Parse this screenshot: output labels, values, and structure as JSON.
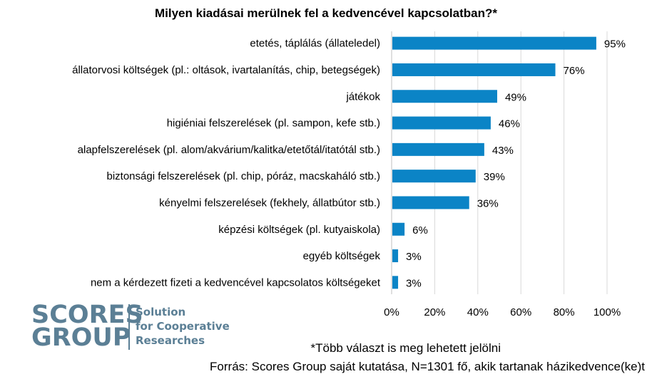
{
  "chart_data": {
    "type": "bar",
    "orientation": "horizontal",
    "title": "Milyen kiadásai merülnek fel a kedvencével kapcsolatban?*",
    "categories": [
      "etetés, táplálás (állateledel)",
      "állatorvosi költségek (pl.: oltások, ivartalanítás, chip, betegségek)",
      "játékok",
      "higiéniai felszerelések (pl. sampon, kefe stb.)",
      "alapfelszerelések (pl. alom/akvárium/kalitka/etetőtál/itatótál stb.)",
      "biztonsági felszerelések (pl. chip, póráz, macskaháló stb.)",
      "kényelmi felszerelések (fekhely, állatbútor stb.)",
      "képzési költségek (pl. kutyaiskola)",
      "egyéb költségek",
      "nem a kérdezett fizeti a kedvencével kapcsolatos költségeket"
    ],
    "values": [
      95,
      76,
      49,
      46,
      43,
      39,
      36,
      6,
      3,
      3
    ],
    "value_labels": [
      "95%",
      "76%",
      "49%",
      "46%",
      "43%",
      "39%",
      "36%",
      "6%",
      "3%",
      "3%"
    ],
    "xlim": [
      0,
      100
    ],
    "x_ticks": [
      "0%",
      "20%",
      "40%",
      "60%",
      "80%",
      "100%"
    ],
    "grid": true,
    "colors": {
      "bar": "#0b84c6",
      "grid": "#d9d9d9"
    }
  },
  "logo": {
    "line1": "SCORES",
    "line2": "GROUP",
    "tagline": [
      "Solution",
      "for Cooperative",
      "Researches"
    ]
  },
  "footnotes": {
    "note": "*Több választ is meg lehetett jelölni",
    "source": "Forrás: Scores Group saját kutatása, N=1301 fő, akik tartanak házikedvence(ke)t"
  }
}
